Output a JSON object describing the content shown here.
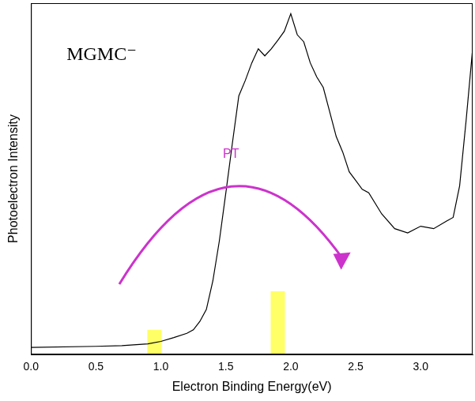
{
  "chart_data": {
    "type": "line",
    "title": "MGMC⁻",
    "x_label": "Electron Binding Energy(eV)",
    "y_label": "Photoelectron Intensity",
    "xlim": [
      0,
      3.4
    ],
    "xticks": [
      {
        "value": 0,
        "label": "0.0"
      },
      0.5,
      {
        "value": 1,
        "label": "1.0"
      },
      1.5,
      {
        "value": 2,
        "label": "2.0"
      },
      2.5,
      {
        "value": 3,
        "label": "3.0"
      }
    ],
    "ylim": [
      0,
      100
    ],
    "tick_labels": "x",
    "grid": false,
    "series": [
      {
        "type": "line",
        "color": "#000000",
        "x": [
          0.0,
          0.5,
          0.7,
          0.9,
          1.0,
          1.1,
          1.2,
          1.25,
          1.3,
          1.35,
          1.4,
          1.45,
          1.5,
          1.55,
          1.6,
          1.65,
          1.7,
          1.75,
          1.8,
          1.85,
          1.9,
          1.95,
          2.0,
          2.05,
          2.1,
          2.15,
          2.2,
          2.25,
          2.3,
          2.35,
          2.4,
          2.45,
          2.5,
          2.55,
          2.6,
          2.7,
          2.8,
          2.9,
          3.0,
          3.1,
          3.2,
          3.25,
          3.3,
          3.35,
          3.4
        ],
        "values": [
          2,
          2.3,
          2.5,
          3,
          3.7,
          4.8,
          6,
          7,
          9.4,
          12.8,
          20.9,
          32.3,
          46,
          60,
          73.6,
          78,
          83,
          87,
          85,
          87,
          89.4,
          92,
          97,
          91,
          89,
          83,
          79,
          76,
          69,
          62,
          57.6,
          52,
          49.5,
          47,
          46,
          40,
          35.8,
          34.6,
          36.5,
          35.8,
          38,
          39,
          48,
          66.7,
          87
        ]
      },
      {
        "type": "bar",
        "color": "#ffff66",
        "x": [
          0.95,
          1.9
        ],
        "values": [
          7,
          18
        ]
      }
    ],
    "annotations": [
      {
        "text": "PT",
        "color": "#cc33cc"
      }
    ]
  }
}
